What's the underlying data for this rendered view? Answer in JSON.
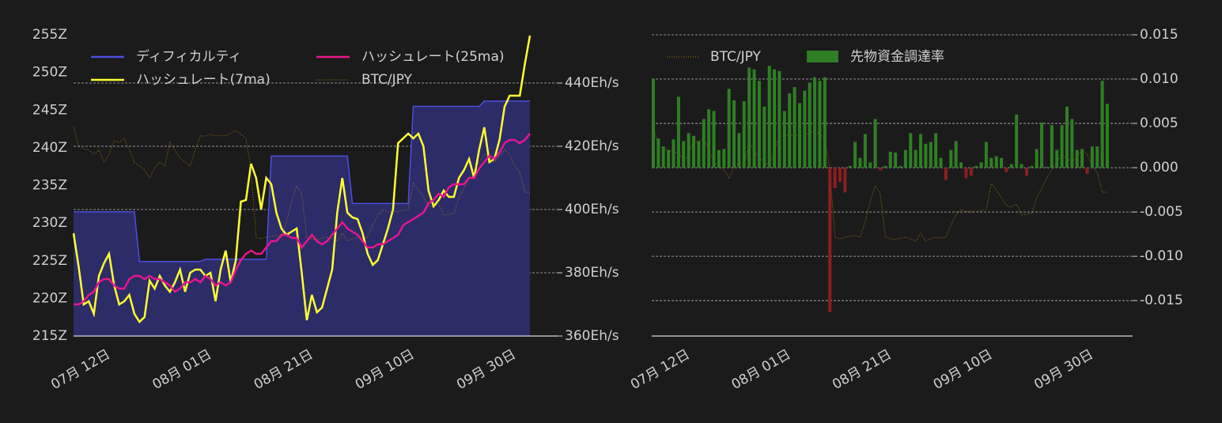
{
  "chart_data": [
    {
      "type": "line",
      "categories": [
        null,
        null,
        null,
        null,
        null,
        null,
        null,
        "07月 12日",
        null,
        null,
        null,
        null,
        null,
        null,
        null,
        null,
        null,
        null,
        null,
        null,
        null,
        null,
        null,
        null,
        null,
        null,
        null,
        "08月 01日",
        null,
        null,
        null,
        null,
        null,
        null,
        null,
        null,
        null,
        null,
        null,
        null,
        null,
        null,
        null,
        null,
        null,
        null,
        null,
        "08月 21日",
        null,
        null,
        null,
        null,
        null,
        null,
        null,
        null,
        null,
        null,
        null,
        null,
        null,
        null,
        null,
        null,
        null,
        null,
        null,
        "09月 10日",
        null,
        null,
        null,
        null,
        null,
        null,
        null,
        null,
        null,
        null,
        null,
        null,
        null,
        null,
        null,
        null,
        null,
        null,
        null,
        "09月 30日",
        null,
        null,
        null
      ],
      "series": [
        {
          "name": "ディフィカルティ",
          "type": "area",
          "axis": "y",
          "color": "#4d4de0",
          "fill": "#2c2c68",
          "values": [
            231.5,
            231.5,
            231.5,
            231.5,
            231.5,
            231.5,
            231.5,
            231.5,
            231.5,
            231.5,
            231.5,
            231.5,
            231.5,
            224.9,
            224.9,
            224.9,
            224.9,
            224.9,
            224.9,
            224.9,
            224.9,
            224.9,
            224.9,
            224.9,
            224.9,
            224.9,
            225.2,
            225.2,
            225.2,
            225.2,
            225.2,
            225.2,
            225.2,
            225.2,
            225.2,
            225.2,
            225.2,
            225.2,
            225.2,
            238.9,
            238.9,
            238.9,
            238.9,
            238.9,
            238.9,
            238.9,
            238.9,
            238.9,
            238.9,
            238.9,
            238.9,
            238.9,
            238.9,
            238.9,
            238.9,
            232.6,
            232.6,
            232.6,
            232.6,
            232.6,
            232.6,
            232.6,
            232.6,
            232.6,
            232.6,
            232.6,
            232.6,
            245.5,
            245.5,
            245.5,
            245.5,
            245.5,
            245.5,
            245.5,
            245.5,
            245.5,
            245.5,
            245.5,
            245.5,
            245.5,
            245.5,
            246.2,
            246.2,
            246.2,
            246.2,
            246.2,
            246.2,
            246.2,
            246.2,
            246.2,
            246.2
          ]
        },
        {
          "name": "ハッシュレート(7ma)",
          "type": "line",
          "axis": "y2",
          "color": "#ffff33",
          "values": [
            392.5,
            382,
            370,
            371,
            367,
            379,
            383,
            386,
            376,
            370,
            371,
            373,
            367,
            364.5,
            366,
            377.5,
            375,
            379,
            376,
            374,
            377,
            381,
            374,
            380,
            381,
            381,
            379,
            380,
            371,
            381,
            387,
            377,
            384,
            402.5,
            403,
            414.5,
            410,
            400,
            410,
            408,
            399,
            394,
            392,
            393,
            394,
            380,
            365,
            373,
            367.5,
            369,
            375,
            381,
            399,
            410,
            399,
            397.5,
            397,
            392.5,
            386,
            382.5,
            384,
            389,
            394,
            400,
            421,
            422.5,
            424,
            422.5,
            424,
            420,
            406,
            401,
            403,
            406,
            404,
            404,
            410,
            412.5,
            416,
            410,
            419,
            426,
            415,
            416,
            422,
            432.5,
            436,
            436,
            436,
            446,
            455
          ]
        },
        {
          "name": "ハッシュレート(25ma)",
          "type": "line",
          "axis": "y2",
          "color": "#e8168c",
          "values": [
            370,
            370,
            371,
            373,
            374,
            377,
            378,
            378,
            376,
            375,
            375,
            378,
            379,
            379,
            378,
            379,
            378,
            378,
            377,
            376,
            374,
            375,
            377,
            377,
            378,
            377,
            379,
            378,
            376,
            377,
            376,
            377,
            381,
            384,
            386,
            387,
            386,
            386,
            388,
            390,
            390,
            392,
            392,
            391,
            391,
            388,
            390,
            392,
            390,
            389,
            390,
            392,
            394,
            396,
            394,
            393,
            392,
            390,
            388,
            388,
            389,
            389,
            390,
            391,
            392,
            395,
            396,
            397,
            398,
            399,
            402,
            403,
            405,
            404,
            407,
            408,
            408,
            408,
            410,
            410,
            413,
            415,
            417,
            416,
            418,
            421,
            422,
            422,
            421,
            422,
            424
          ]
        },
        {
          "name": "BTC/JPY",
          "type": "line",
          "axis": "y3",
          "color": "#a07a1a",
          "style": "dotted",
          "values": [
            4349000,
            4245000,
            4233000,
            4225000,
            4204000,
            4225000,
            4162000,
            4204000,
            4274000,
            4266000,
            4287000,
            4225000,
            4162000,
            4142000,
            4121000,
            4079000,
            4133000,
            4162000,
            4142000,
            4266000,
            4225000,
            4183000,
            4162000,
            4142000,
            4225000,
            4299000,
            4299000,
            4307000,
            4299000,
            4303000,
            4299000,
            4316000,
            4328000,
            4307000,
            4287000,
            4121000,
            3768000,
            3760000,
            3768000,
            3773000,
            3777000,
            3768000,
            3851000,
            3955000,
            4038000,
            3996000,
            3768000,
            3760000,
            3756000,
            3764000,
            3768000,
            3760000,
            3748000,
            3789000,
            3748000,
            3760000,
            3768000,
            3764000,
            3768000,
            3831000,
            3884000,
            3914000,
            3901000,
            3905000,
            3901000,
            3909000,
            3914000,
            4050000,
            4017000,
            3976000,
            3934000,
            3926000,
            3943000,
            3884000,
            3889000,
            3893000,
            3976000,
            4025000,
            4079000,
            4121000,
            4162000,
            4204000,
            4183000,
            4162000,
            4191000,
            4225000,
            4204000,
            4142000,
            4108000,
            4005000,
            4005000
          ]
        }
      ],
      "ylim": [
        215,
        255
      ],
      "yticks": [
        {
          "value": 215,
          "label": "215Z"
        },
        {
          "value": 220,
          "label": "220Z"
        },
        {
          "value": 225,
          "label": "225Z"
        },
        {
          "value": 230,
          "label": "230Z"
        },
        {
          "value": 235,
          "label": "235Z"
        },
        {
          "value": 240,
          "label": "240Z"
        },
        {
          "value": 245,
          "label": "245Z"
        },
        {
          "value": 250,
          "label": "250Z"
        },
        {
          "value": 255,
          "label": "255Z"
        }
      ],
      "y2lim": [
        360,
        455.25
      ],
      "y2ticks": [
        {
          "value": 360,
          "label": "360Eh/s"
        },
        {
          "value": 380,
          "label": "380Eh/s"
        },
        {
          "value": 400,
          "label": "400Eh/s"
        },
        {
          "value": 420,
          "label": "420Eh/s"
        },
        {
          "value": 440,
          "label": "440Eh/s"
        }
      ],
      "y3lim": [
        3250000,
        4830000
      ],
      "grid": true,
      "legend": "upper left"
    },
    {
      "type": "bar",
      "categories": [
        null,
        null,
        null,
        null,
        null,
        null,
        null,
        "07月 12日",
        null,
        null,
        null,
        null,
        null,
        null,
        null,
        null,
        null,
        null,
        null,
        null,
        null,
        null,
        null,
        null,
        null,
        null,
        null,
        "08月 01日",
        null,
        null,
        null,
        null,
        null,
        null,
        null,
        null,
        null,
        null,
        null,
        null,
        null,
        null,
        null,
        null,
        null,
        null,
        null,
        "08月 21日",
        null,
        null,
        null,
        null,
        null,
        null,
        null,
        null,
        null,
        null,
        null,
        null,
        null,
        null,
        null,
        null,
        null,
        null,
        null,
        "09月 10日",
        null,
        null,
        null,
        null,
        null,
        null,
        null,
        null,
        null,
        null,
        null,
        null,
        null,
        null,
        null,
        null,
        null,
        null,
        null,
        "09月 30日",
        null,
        null,
        null
      ],
      "series": [
        {
          "name": "BTC/JPY",
          "type": "line",
          "axis": "y3",
          "color": "#a07a1a",
          "style": "dotted",
          "values": [
            4349000,
            4245000,
            4233000,
            4225000,
            4204000,
            4225000,
            4162000,
            4204000,
            4274000,
            4266000,
            4287000,
            4225000,
            4162000,
            4142000,
            4121000,
            4079000,
            4133000,
            4162000,
            4142000,
            4266000,
            4225000,
            4183000,
            4162000,
            4142000,
            4225000,
            4299000,
            4299000,
            4307000,
            4299000,
            4303000,
            4299000,
            4316000,
            4328000,
            4307000,
            4287000,
            4121000,
            3768000,
            3760000,
            3768000,
            3773000,
            3777000,
            3768000,
            3851000,
            3955000,
            4038000,
            3996000,
            3768000,
            3760000,
            3756000,
            3764000,
            3768000,
            3760000,
            3748000,
            3789000,
            3748000,
            3760000,
            3768000,
            3764000,
            3768000,
            3831000,
            3884000,
            3914000,
            3901000,
            3905000,
            3901000,
            3909000,
            3914000,
            4050000,
            4017000,
            3976000,
            3934000,
            3926000,
            3943000,
            3884000,
            3889000,
            3893000,
            3976000,
            4025000,
            4079000,
            4121000,
            4162000,
            4204000,
            4183000,
            4162000,
            4191000,
            4225000,
            4204000,
            4142000,
            4108000,
            4005000,
            4005000
          ]
        },
        {
          "name": "先物資金調達率",
          "type": "bar",
          "axis": "y",
          "color": "#2f7f24",
          "negative_color": "#8b1f1f",
          "values": [
            0.01,
            0.0033,
            0.0024,
            0.002,
            0.0032,
            0.008,
            0.003,
            0.0039,
            0.0036,
            0.003,
            0.0055,
            0.0066,
            0.0064,
            0.002,
            0.0021,
            0.0089,
            0.0076,
            0.0039,
            0.0075,
            0.0113,
            0.0111,
            0.0098,
            0.0069,
            0.0115,
            0.0111,
            0.0109,
            0.0064,
            0.0084,
            0.0091,
            0.0073,
            0.0087,
            0.0096,
            0.0102,
            0.0098,
            0.0102,
            -0.0163,
            -0.0023,
            -0.0016,
            -0.0028,
            0.0002,
            0.0029,
            0.0011,
            0.0038,
            0.0006,
            0.0055,
            -0.0003,
            0.0002,
            0.0018,
            0.0017,
            0.0002,
            0.002,
            0.0039,
            0.002,
            0.0038,
            0.0027,
            0.0029,
            0.0039,
            0.0011,
            -0.0014,
            0.002,
            0.003,
            0.0006,
            -0.0012,
            -0.0009,
            0.0002,
            0.0006,
            0.0029,
            0.0011,
            0.0013,
            0.0011,
            -0.0005,
            0.0004,
            0.006,
            0.0004,
            -0.0009,
            0.0002,
            0.0021,
            0.0051,
            0.0001,
            0.0048,
            0.002,
            0.0048,
            0.0069,
            0.0055,
            0.002,
            0.0021,
            -0.0007,
            0.0024,
            0.0024,
            0.0098,
            0.0072
          ]
        }
      ],
      "ylim": [
        -0.019,
        0.015
      ],
      "yticks": [
        -0.015,
        {
          "value": -0.01,
          "label": "-0.010"
        },
        -0.005,
        {
          "value": 0,
          "label": "0.000"
        },
        0.005,
        {
          "value": 0.01,
          "label": "0.010"
        },
        0.015
      ],
      "y3lim": [
        3250000,
        4830000
      ],
      "grid": true,
      "legend": "upper left"
    }
  ]
}
